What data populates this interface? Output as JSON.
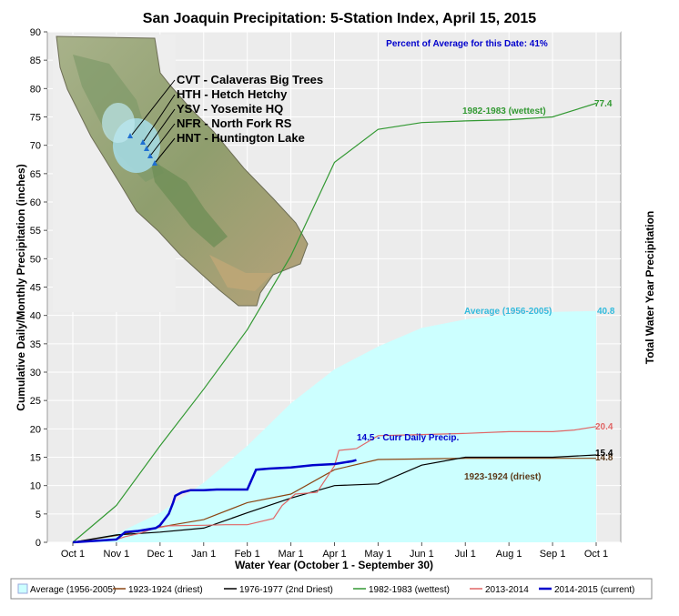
{
  "chart_data": {
    "type": "line",
    "title": "San Joaquin Precipitation: 5-Station Index, April 15, 2015",
    "subtitle": "Percent of Average for this Date: 41%",
    "xlabel": "Water Year (October 1 - September 30)",
    "ylabel": "Cumulative Daily/Monthly Precipitation (inches)",
    "ylabel_right": "Total Water Year Precipitation",
    "ylim": [
      0,
      90
    ],
    "yticks": [
      0,
      5,
      10,
      15,
      20,
      25,
      30,
      35,
      40,
      45,
      50,
      55,
      60,
      65,
      70,
      75,
      80,
      85,
      90
    ],
    "xlim": [
      0,
      12
    ],
    "xticks": [
      "Oct 1",
      "Nov 1",
      "Dec 1",
      "Jan 1",
      "Feb 1",
      "Mar 1",
      "Apr 1",
      "May 1",
      "Jun 1",
      "Jul 1",
      "Aug 1",
      "Sep 1",
      "Oct 1"
    ],
    "grid": true,
    "legend_position": "bottom",
    "stations": [
      "CVT - Calaveras Big Trees",
      "HTH - Hetch Hetchy",
      "YSV - Yosemite HQ",
      "NFR - North Fork RS",
      "HNT - Huntington Lake"
    ],
    "series": [
      {
        "name": "Average (1956-2005)",
        "kind": "area",
        "color": "#ccffff",
        "label": "Average (1956-2005)",
        "end_label": "40.8",
        "label_color": "#33bbdd",
        "x": [
          0,
          1,
          2,
          3,
          4,
          5,
          6,
          7,
          8,
          9,
          10,
          11,
          12
        ],
        "values": [
          0,
          1.5,
          5.2,
          10.5,
          17.0,
          24.5,
          30.5,
          34.5,
          37.8,
          39.3,
          40.2,
          40.6,
          40.8
        ]
      },
      {
        "name": "1923-1924 (driest)",
        "color": "#8b4513",
        "label": "1923-1924 (driest)",
        "end_label": "14.8",
        "label_color": "#5c3a1a",
        "x": [
          0,
          1,
          2,
          3,
          4,
          5,
          6,
          7,
          8,
          9,
          10,
          11,
          12
        ],
        "values": [
          0,
          1.2,
          2.7,
          4.0,
          7.0,
          8.5,
          12.8,
          14.6,
          14.7,
          14.8,
          14.8,
          14.8,
          14.8
        ]
      },
      {
        "name": "1976-1977 (2nd Driest)",
        "color": "#000000",
        "end_label": "15.4",
        "x": [
          0,
          1,
          2,
          3,
          4,
          5,
          6,
          7,
          8,
          9,
          10,
          11,
          12
        ],
        "values": [
          0,
          1.3,
          1.8,
          2.5,
          5.2,
          7.8,
          10.0,
          10.3,
          13.6,
          15.0,
          15.0,
          15.0,
          15.4
        ]
      },
      {
        "name": "1982-1983 (wettest)",
        "color": "#339933",
        "label": "1982-1983 (wettest)",
        "end_label": "77.4",
        "label_color": "#339933",
        "x": [
          0,
          1,
          2,
          3,
          4,
          5,
          6,
          7,
          8,
          9,
          10,
          11,
          12
        ],
        "values": [
          0,
          6.5,
          17.0,
          27.0,
          37.5,
          50.5,
          67.0,
          72.8,
          74.0,
          74.3,
          74.5,
          75.0,
          77.4
        ]
      },
      {
        "name": "2013-2014",
        "color": "#e06666",
        "end_label": "20.4",
        "label_color": "#e06666",
        "x": [
          0,
          1,
          1.2,
          1.5,
          1.9,
          2.2,
          3.0,
          3.5,
          4.0,
          4.6,
          4.8,
          5.1,
          5.6,
          6.0,
          6.1,
          6.5,
          7.0,
          8.0,
          9.0,
          10.0,
          11.0,
          11.5,
          12.0
        ],
        "values": [
          0,
          0.5,
          1.0,
          1.5,
          2.5,
          2.9,
          3.0,
          3.1,
          3.1,
          4.2,
          6.5,
          8.5,
          8.8,
          13.5,
          16.2,
          16.5,
          18.8,
          19.0,
          19.2,
          19.5,
          19.5,
          19.8,
          20.4
        ]
      },
      {
        "name": "2014-2015 (current)",
        "color": "#0000cc",
        "label": "14.5 - Curr Daily Precip.",
        "label_color": "#0000cc",
        "x": [
          0,
          1.0,
          1.2,
          1.5,
          1.9,
          2.0,
          2.2,
          2.3,
          2.35,
          2.5,
          2.7,
          3.0,
          3.3,
          4.0,
          4.2,
          4.5,
          5.0,
          5.5,
          6.0,
          6.4,
          6.5
        ],
        "values": [
          0,
          0.5,
          1.8,
          2.0,
          2.5,
          3.0,
          5.0,
          7.0,
          8.2,
          8.8,
          9.2,
          9.2,
          9.3,
          9.3,
          12.8,
          13.0,
          13.2,
          13.6,
          13.8,
          14.3,
          14.5
        ]
      }
    ]
  }
}
